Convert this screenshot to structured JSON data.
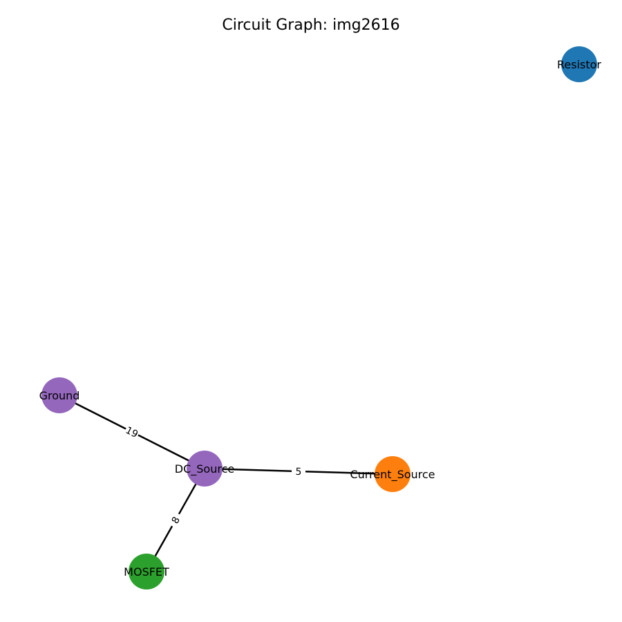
{
  "title": "Circuit Graph: img2616",
  "colors": {
    "purple": "#9467bd",
    "blue": "#1f77b4",
    "orange": "#ff7f0e",
    "green": "#2ca02c",
    "edge": "#000000",
    "background": "#ffffff"
  },
  "nodes": [
    {
      "id": "resistor",
      "label": "Resistor",
      "color": "#1f77b4"
    },
    {
      "id": "ground",
      "label": "Ground",
      "color": "#9467bd"
    },
    {
      "id": "dc_source",
      "label": "DC_Source",
      "color": "#9467bd"
    },
    {
      "id": "current_source",
      "label": "Current_Source",
      "color": "#ff7f0e"
    },
    {
      "id": "mosfet",
      "label": "MOSFET",
      "color": "#2ca02c"
    }
  ],
  "edges": [
    {
      "id": "ground-dc_source",
      "source": "ground",
      "target": "dc_source",
      "weight": "19"
    },
    {
      "id": "dc_source-current_source",
      "source": "dc_source",
      "target": "current_source",
      "weight": "5"
    },
    {
      "id": "dc_source-mosfet",
      "source": "dc_source",
      "target": "mosfet",
      "weight": "8"
    }
  ]
}
